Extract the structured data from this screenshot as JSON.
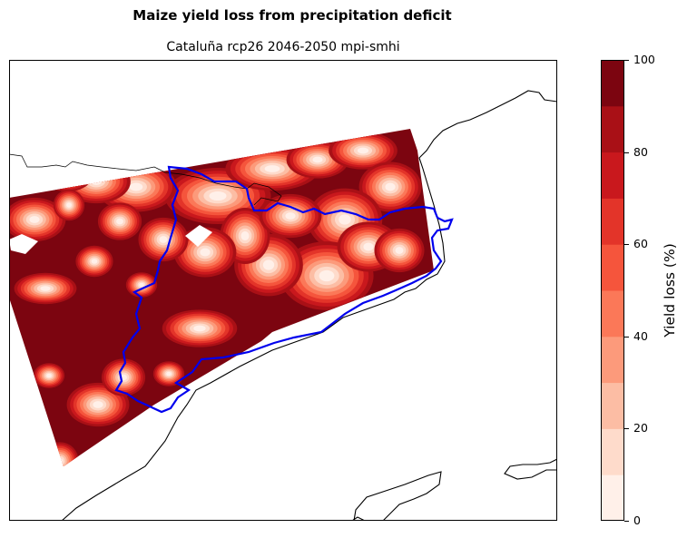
{
  "figure": {
    "title": "Maize yield loss from precipitation deficit",
    "subtitle": "Cataluña rcp26 2046-2050 mpi-smhi"
  },
  "colorbar": {
    "label": "Yield loss (%)",
    "ticks": [
      "0",
      "20",
      "40",
      "60",
      "80",
      "100"
    ],
    "levels": [
      0,
      10,
      20,
      30,
      40,
      50,
      60,
      70,
      80,
      90,
      100
    ],
    "colors": [
      "#fff0e9",
      "#fedbcb",
      "#fcbda4",
      "#fc9a7b",
      "#fb7858",
      "#f5553c",
      "#e33429",
      "#c9181d",
      "#a91016",
      "#7c0510"
    ]
  },
  "map": {
    "region": "Cataluña",
    "border_color": "#0000ee",
    "coast_color": "#000000",
    "dominant_class": "90-100"
  }
}
